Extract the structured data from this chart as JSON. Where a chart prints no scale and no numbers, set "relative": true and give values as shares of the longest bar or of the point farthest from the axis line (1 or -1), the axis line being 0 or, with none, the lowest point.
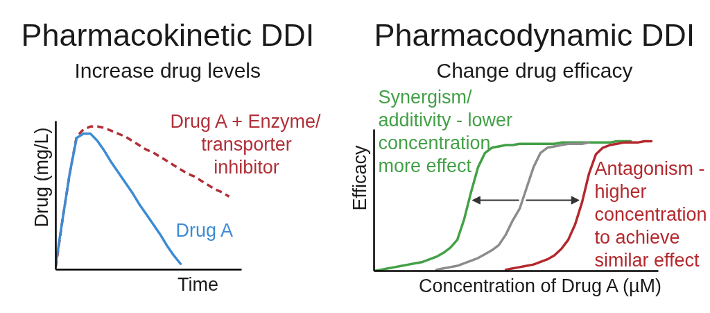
{
  "chart_data": [
    {
      "type": "line",
      "title": "Pharmacokinetic DDI",
      "subtitle": "Increase drug levels",
      "xlabel": "Time",
      "ylabel": "Drug (mg/L)",
      "relative": true,
      "categories": [
        null,
        null,
        null,
        null,
        null,
        null,
        null,
        null,
        null,
        null,
        null,
        null,
        null,
        null,
        null,
        null,
        null,
        null,
        null,
        null,
        null,
        null,
        null,
        null,
        null,
        null,
        null
      ],
      "series": [
        {
          "name": "Drug A + Enzyme/ transporter inhibitor",
          "color": "#b03038",
          "line_style": "dashed",
          "values": [
            0.02,
            0.36,
            0.67,
            0.93,
            0.98,
            1.0,
            1.0,
            0.99,
            0.97,
            0.95,
            0.93,
            0.9,
            0.87,
            0.84,
            0.82,
            0.79,
            0.76,
            0.73,
            0.7,
            0.67,
            0.65,
            0.62,
            0.59,
            0.56,
            0.54,
            0.51,
            null
          ]
        },
        {
          "name": "Drug A",
          "color": "#3d8bd4",
          "values": [
            0.04,
            0.36,
            0.67,
            0.92,
            0.95,
            0.95,
            0.9,
            0.83,
            0.75,
            0.68,
            0.61,
            0.54,
            0.46,
            0.39,
            0.32,
            0.25,
            0.17,
            0.1,
            0.04,
            null,
            null,
            null,
            null,
            null,
            null,
            null,
            null
          ]
        }
      ]
    },
    {
      "type": "line",
      "title": "Pharmacodynamic DDI",
      "subtitle": "Change drug efficacy",
      "xlabel": "Concentration of Drug A (µM)",
      "ylabel": "Efficacy",
      "relative": true,
      "categories": [
        null,
        null,
        null,
        null,
        null,
        null,
        null,
        null,
        null,
        null,
        null,
        null,
        null,
        null,
        null,
        null,
        null,
        null,
        null,
        null,
        null,
        null,
        null,
        null,
        null,
        null,
        null,
        null,
        null,
        null,
        null,
        null,
        null,
        null,
        null,
        null,
        null,
        null,
        null,
        null,
        null
      ],
      "series": [
        {
          "name": "Synergism/ additivity - lower concentration more effect",
          "color": "#43a047",
          "values": [
            0,
            0.01,
            0.02,
            0.03,
            0.04,
            0.05,
            0.06,
            0.07,
            0.09,
            0.11,
            0.14,
            0.18,
            0.24,
            0.4,
            0.61,
            0.8,
            0.91,
            0.95,
            0.96,
            0.97,
            0.97,
            0.98,
            0.98,
            0.98,
            0.98,
            0.98,
            0.98,
            0.99,
            0.99,
            0.99,
            0.99,
            0.99,
            0.99,
            0.99,
            0.99,
            1.0,
            1.0,
            1.0,
            null,
            null,
            null
          ]
        },
        {
          "color": "#8c8c8c",
          "values": [
            null,
            null,
            null,
            null,
            null,
            null,
            null,
            null,
            null,
            0.01,
            0.02,
            0.03,
            0.04,
            0.06,
            0.08,
            0.1,
            0.13,
            0.16,
            0.2,
            0.28,
            0.39,
            0.48,
            0.64,
            0.8,
            0.91,
            0.95,
            0.96,
            0.97,
            0.98,
            0.98,
            0.98,
            0.99,
            null,
            null,
            null,
            null,
            null,
            null,
            null,
            null,
            null
          ]
        },
        {
          "name": "Antagonism - higher concentration to achieve similar effect",
          "color": "#b3282d",
          "values": [
            null,
            null,
            null,
            null,
            null,
            null,
            null,
            null,
            null,
            null,
            null,
            null,
            null,
            null,
            null,
            null,
            null,
            null,
            null,
            0.01,
            0.02,
            0.03,
            0.04,
            0.05,
            0.07,
            0.09,
            0.12,
            0.17,
            0.24,
            0.36,
            0.53,
            0.75,
            0.9,
            0.95,
            0.97,
            0.98,
            0.99,
            0.99,
            0.99,
            1.0,
            1.0
          ]
        }
      ]
    }
  ]
}
